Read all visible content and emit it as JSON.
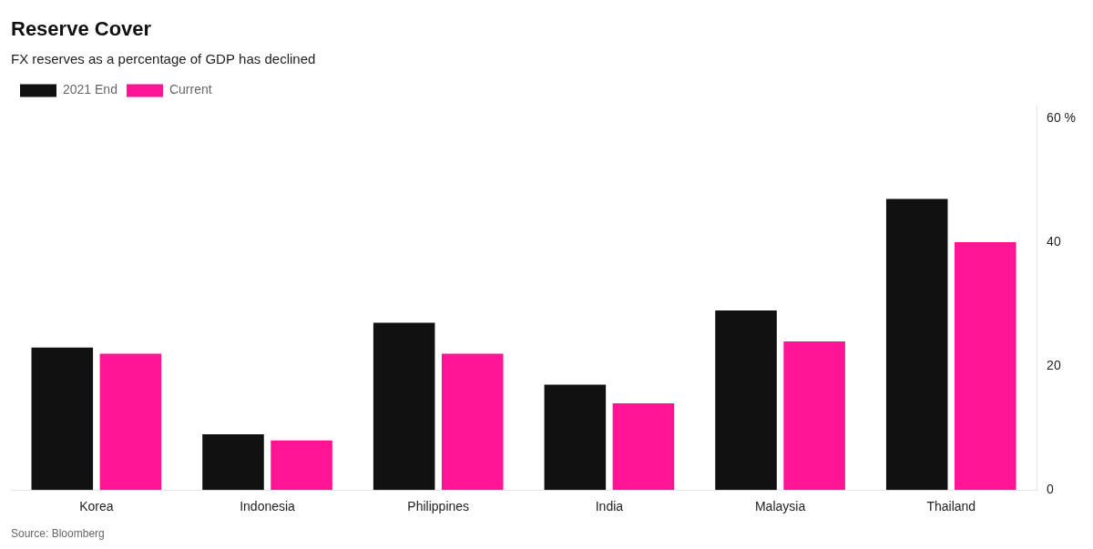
{
  "chart_data": {
    "type": "bar",
    "title": "Reserve Cover",
    "subtitle": "FX reserves as a percentage of GDP has declined",
    "categories": [
      "Korea",
      "Indonesia",
      "Philippines",
      "India",
      "Malaysia",
      "Thailand"
    ],
    "series": [
      {
        "name": "2021 End",
        "color": "#111111",
        "values": [
          23,
          9,
          27,
          17,
          29,
          47
        ]
      },
      {
        "name": "Current",
        "color": "#FF1493",
        "values": [
          22,
          8,
          22,
          14,
          24,
          40
        ]
      }
    ],
    "ylim": [
      0,
      62
    ],
    "yticks": [
      0,
      20,
      40,
      {
        "value": 60,
        "label": "60 %"
      }
    ],
    "grid": false,
    "legend": "top left",
    "annotations": [
      "Source: Bloomberg"
    ]
  }
}
